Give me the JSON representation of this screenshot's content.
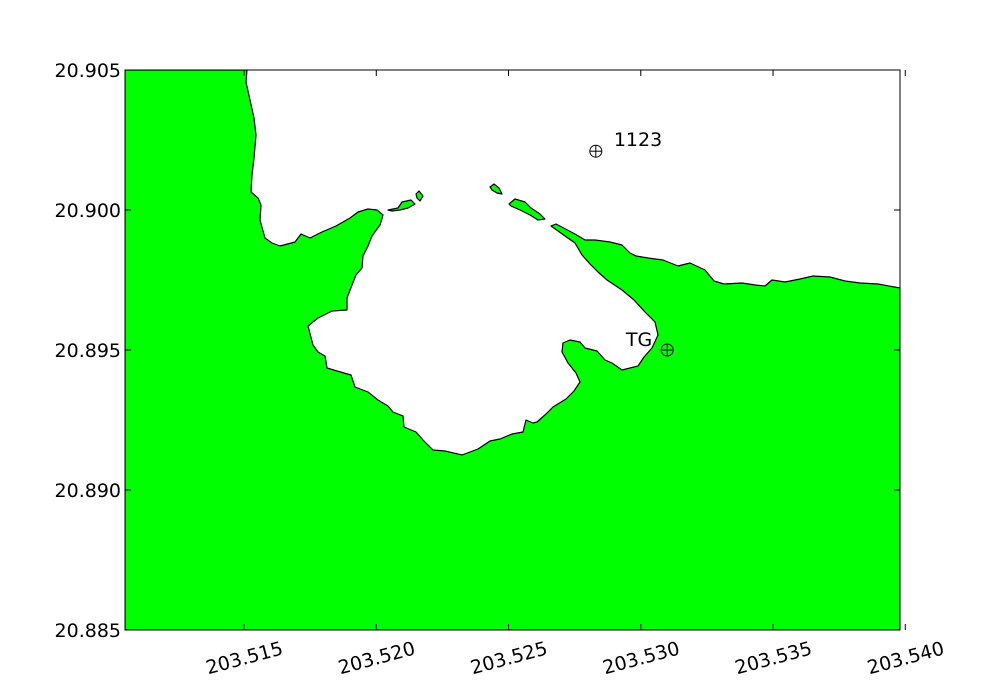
{
  "map": {
    "land_color": "#00ff00",
    "water_color": "#ffffff",
    "outline_color": "#000000",
    "x_ticks": [
      {
        "value": 203.515,
        "label": "203.515"
      },
      {
        "value": 203.52,
        "label": "203.520"
      },
      {
        "value": 203.525,
        "label": "203.525"
      },
      {
        "value": 203.53,
        "label": "203.530"
      },
      {
        "value": 203.535,
        "label": "203.535"
      },
      {
        "value": 203.54,
        "label": "203.540"
      }
    ],
    "y_ticks": [
      {
        "value": 20.905,
        "label": "20.905"
      },
      {
        "value": 20.9,
        "label": "20.900"
      },
      {
        "value": 20.895,
        "label": "20.895"
      },
      {
        "value": 20.89,
        "label": "20.890"
      },
      {
        "value": 20.885,
        "label": "20.885"
      }
    ],
    "xlim": [
      203.5105,
      203.5398
    ],
    "ylim": [
      20.885,
      20.905
    ],
    "markers": [
      {
        "name": "1123",
        "label": "1123",
        "lon": 203.5283,
        "lat": 20.9021,
        "icon": "circle-plus-icon",
        "label_side": "right"
      },
      {
        "name": "TG",
        "label": "TG",
        "lon": 203.531,
        "lat": 20.895,
        "icon": "circle-plus-icon",
        "label_side": "left"
      }
    ]
  }
}
